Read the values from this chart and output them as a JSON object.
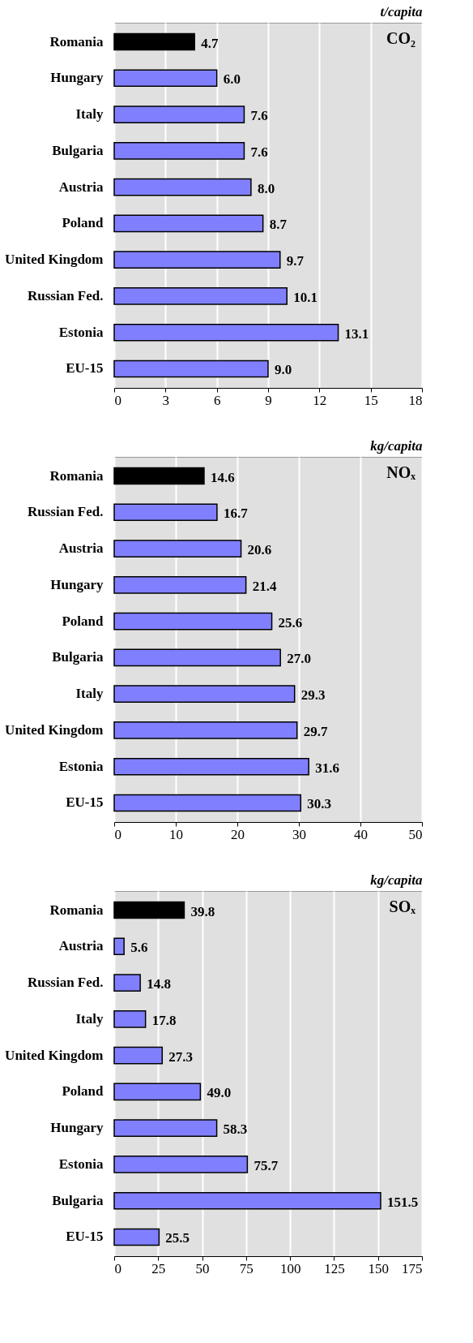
{
  "chart_data": [
    {
      "type": "bar",
      "orientation": "horizontal",
      "title": "t/capita",
      "annotations": [
        "CO₂"
      ],
      "categories": [
        "Romania",
        "Hungary",
        "Italy",
        "Bulgaria",
        "Austria",
        "Poland",
        "United Kingdom",
        "Russian Fed.",
        "Estonia",
        "EU-15"
      ],
      "values": [
        4.7,
        6.0,
        7.6,
        7.6,
        8.0,
        8.7,
        9.7,
        10.1,
        13.1,
        9.0
      ],
      "colors": [
        "#000000",
        "#8080ff",
        "#8080ff",
        "#8080ff",
        "#8080ff",
        "#8080ff",
        "#8080ff",
        "#8080ff",
        "#8080ff",
        "#8080ff"
      ],
      "xlim": [
        0,
        18
      ],
      "xticks": [
        0,
        3,
        6,
        9,
        12,
        15,
        18
      ],
      "grid": "x",
      "value_labels": [
        "4.7",
        "6.0",
        "7.6",
        "7.6",
        "8.0",
        "8.7",
        "9.7",
        "10.1",
        "13.1",
        "9.0"
      ]
    },
    {
      "type": "bar",
      "orientation": "horizontal",
      "title": "kg/capita",
      "annotations": [
        "NOₓ"
      ],
      "categories": [
        "Romania",
        "Russian Fed.",
        "Austria",
        "Hungary",
        "Poland",
        "Bulgaria",
        "Italy",
        "United Kingdom",
        "Estonia",
        "EU-15"
      ],
      "values": [
        14.6,
        16.7,
        20.6,
        21.4,
        25.6,
        27.0,
        29.3,
        29.7,
        31.6,
        30.3
      ],
      "colors": [
        "#000000",
        "#8080ff",
        "#8080ff",
        "#8080ff",
        "#8080ff",
        "#8080ff",
        "#8080ff",
        "#8080ff",
        "#8080ff",
        "#8080ff"
      ],
      "xlim": [
        0,
        50
      ],
      "xticks": [
        0,
        10,
        20,
        30,
        40,
        50
      ],
      "grid": "x",
      "value_labels": [
        "14.6",
        "16.7",
        "20.6",
        "21.4",
        "25.6",
        "27.0",
        "29.3",
        "29.7",
        "31.6",
        "30.3"
      ]
    },
    {
      "type": "bar",
      "orientation": "horizontal",
      "title": "kg/capita",
      "annotations": [
        "SOₓ"
      ],
      "categories": [
        "Romania",
        "Austria",
        "Russian Fed.",
        "Italy",
        "United Kingdom",
        "Poland",
        "Hungary",
        "Estonia",
        "Bulgaria",
        "EU-15"
      ],
      "values": [
        39.8,
        5.6,
        14.8,
        17.8,
        27.3,
        49.0,
        58.3,
        75.7,
        151.5,
        25.5
      ],
      "colors": [
        "#000000",
        "#8080ff",
        "#8080ff",
        "#8080ff",
        "#8080ff",
        "#8080ff",
        "#8080ff",
        "#8080ff",
        "#8080ff",
        "#8080ff"
      ],
      "xlim": [
        0,
        175
      ],
      "xticks": [
        0,
        25,
        50,
        75,
        100,
        125,
        150,
        175
      ],
      "grid": "x",
      "value_labels": [
        "39.8",
        "5.6",
        "14.8",
        "17.8",
        "27.3",
        "49.0",
        "58.3",
        "75.7",
        "151.5",
        "25.5"
      ]
    }
  ]
}
